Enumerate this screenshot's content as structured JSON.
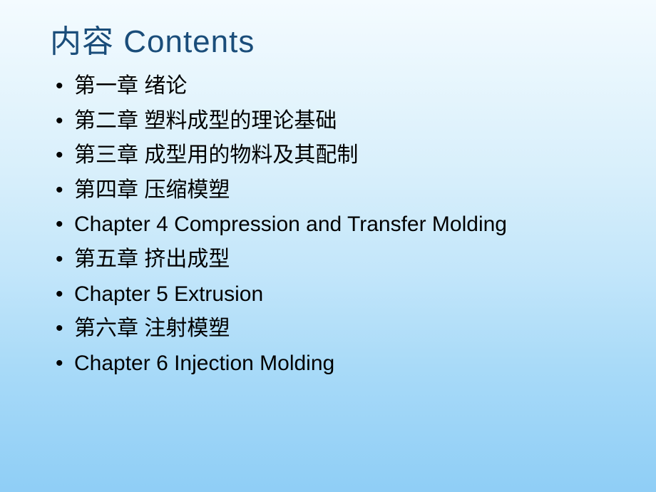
{
  "title": "内容 Contents",
  "items": [
    "第一章 绪论",
    "第二章 塑料成型的理论基础",
    "第三章 成型用的物料及其配制",
    "第四章 压缩模塑",
    "Chapter 4 Compression and Transfer Molding",
    "第五章 挤出成型",
    "Chapter 5  Extrusion",
    "第六章 注射模塑",
    "Chapter 6  Injection Molding"
  ],
  "colors": {
    "title_color": "#1a4d7a",
    "text_color": "#000000",
    "bg_gradient_top": "#f4fbff",
    "bg_gradient_bottom": "#8fcef6"
  },
  "typography": {
    "title_fontsize": 44,
    "item_fontsize": 30
  }
}
